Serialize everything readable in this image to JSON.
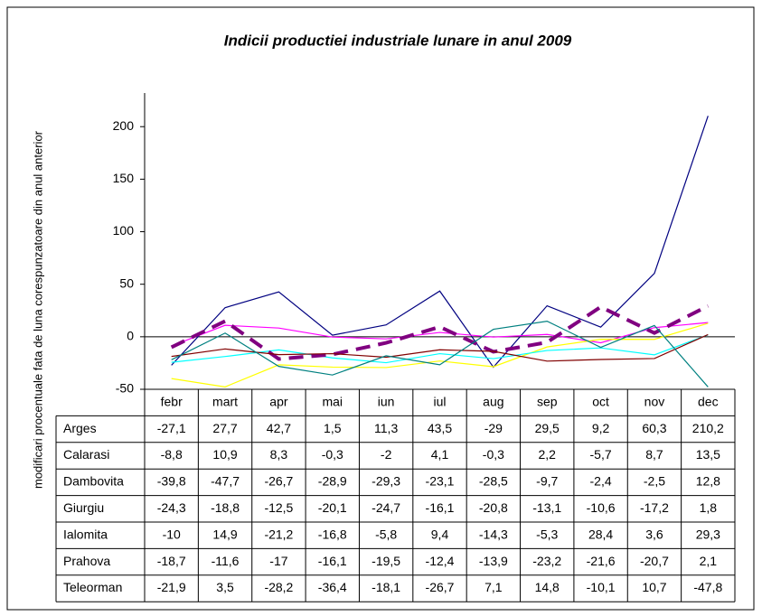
{
  "chart_data": {
    "type": "line",
    "title": "Indicii productiei industriale lunare in anul 2009",
    "y_label": "modificari procentuale fata de luna corespunzatoare din anul anterior",
    "categories": [
      "febr",
      "mart",
      "apr",
      "mai",
      "iun",
      "iul",
      "aug",
      "sep",
      "oct",
      "nov",
      "dec"
    ],
    "ylim": [
      -50,
      232
    ],
    "yticks": [
      -50,
      0,
      50,
      100,
      150,
      200
    ],
    "series": [
      {
        "name": "Arges",
        "color": "#000080",
        "values": [
          -27.1,
          27.7,
          42.7,
          1.5,
          11.3,
          43.5,
          -29,
          29.5,
          9.2,
          60.3,
          210.2
        ],
        "value_labels": [
          "-27,1",
          "27,7",
          "42,7",
          "1,5",
          "11,3",
          "43,5",
          "-29",
          "29,5",
          "9,2",
          "60,3",
          "210,2"
        ]
      },
      {
        "name": "Calarasi",
        "color": "#ff00ff",
        "values": [
          -8.8,
          10.9,
          8.3,
          -0.3,
          -2,
          4.1,
          -0.3,
          2.2,
          -5.7,
          8.7,
          13.5
        ],
        "value_labels": [
          "-8,8",
          "10,9",
          "8,3",
          "-0,3",
          "-2",
          "4,1",
          "-0,3",
          "2,2",
          "-5,7",
          "8,7",
          "13,5"
        ]
      },
      {
        "name": "Dambovita",
        "color": "#ffff00",
        "values": [
          -39.8,
          -47.7,
          -26.7,
          -28.9,
          -29.3,
          -23.1,
          -28.5,
          -9.7,
          -2.4,
          -2.5,
          12.8
        ],
        "value_labels": [
          "-39,8",
          "-47,7",
          "-26,7",
          "-28,9",
          "-29,3",
          "-23,1",
          "-28,5",
          "-9,7",
          "-2,4",
          "-2,5",
          "12,8"
        ]
      },
      {
        "name": "Giurgiu",
        "color": "#00ffff",
        "values": [
          -24.3,
          -18.8,
          -12.5,
          -20.1,
          -24.7,
          -16.1,
          -20.8,
          -13.1,
          -10.6,
          -17.2,
          1.8
        ],
        "value_labels": [
          "-24,3",
          "-18,8",
          "-12,5",
          "-20,1",
          "-24,7",
          "-16,1",
          "-20,8",
          "-13,1",
          "-10,6",
          "-17,2",
          "1,8"
        ]
      },
      {
        "name": "Ialomita",
        "color": "#800080",
        "dashed": true,
        "values": [
          -10,
          14.9,
          -21.2,
          -16.8,
          -5.8,
          9.4,
          -14.3,
          -5.3,
          28.4,
          3.6,
          29.3
        ],
        "value_labels": [
          "-10",
          "14,9",
          "-21,2",
          "-16,8",
          "-5,8",
          "9,4",
          "-14,3",
          "-5,3",
          "28,4",
          "3,6",
          "29,3"
        ]
      },
      {
        "name": "Prahova",
        "color": "#800000",
        "values": [
          -18.7,
          -11.6,
          -17,
          -16.1,
          -19.5,
          -12.4,
          -13.9,
          -23.2,
          -21.6,
          -20.7,
          2.1
        ],
        "value_labels": [
          "-18,7",
          "-11,6",
          "-17",
          "-16,1",
          "-19,5",
          "-12,4",
          "-13,9",
          "-23,2",
          "-21,6",
          "-20,7",
          "2,1"
        ]
      },
      {
        "name": "Teleorman",
        "color": "#008080",
        "values": [
          -21.9,
          3.5,
          -28.2,
          -36.4,
          -18.1,
          -26.7,
          7.1,
          14.8,
          -10.1,
          10.7,
          -47.8
        ],
        "value_labels": [
          "-21,9",
          "3,5",
          "-28,2",
          "-36,4",
          "-18,1",
          "-26,7",
          "7,1",
          "14,8",
          "-10,1",
          "10,7",
          "-47,8"
        ]
      }
    ]
  }
}
